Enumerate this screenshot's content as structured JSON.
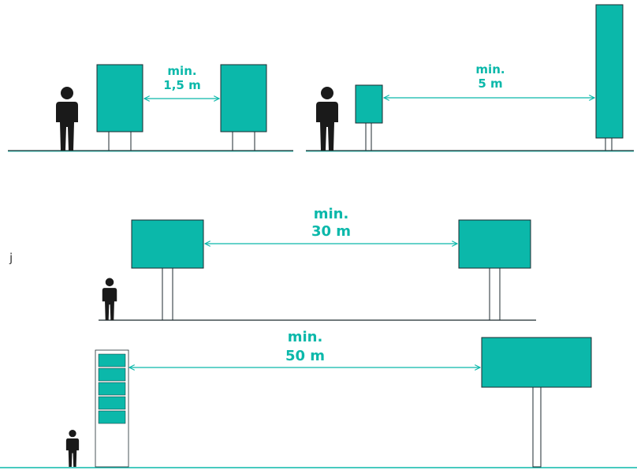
{
  "colors": {
    "sign_fill": "#0bb8aa",
    "sign_stroke": "#1c2a2f",
    "arrow": "#0bb8aa",
    "text": "#0bb8aa",
    "person": "#1a1a1a",
    "ground": "#1c2a2f",
    "ground_accent": "#0bb8aa"
  },
  "labels": {
    "d1_line1": "min.",
    "d1_line2": "1,5 m",
    "d2_line1": "min.",
    "d2_line2": "5 m",
    "d3_line1": "min.",
    "d3_line2": "30 m",
    "d4_line1": "min.",
    "d4_line2": "50 m"
  },
  "stray_char": "j"
}
